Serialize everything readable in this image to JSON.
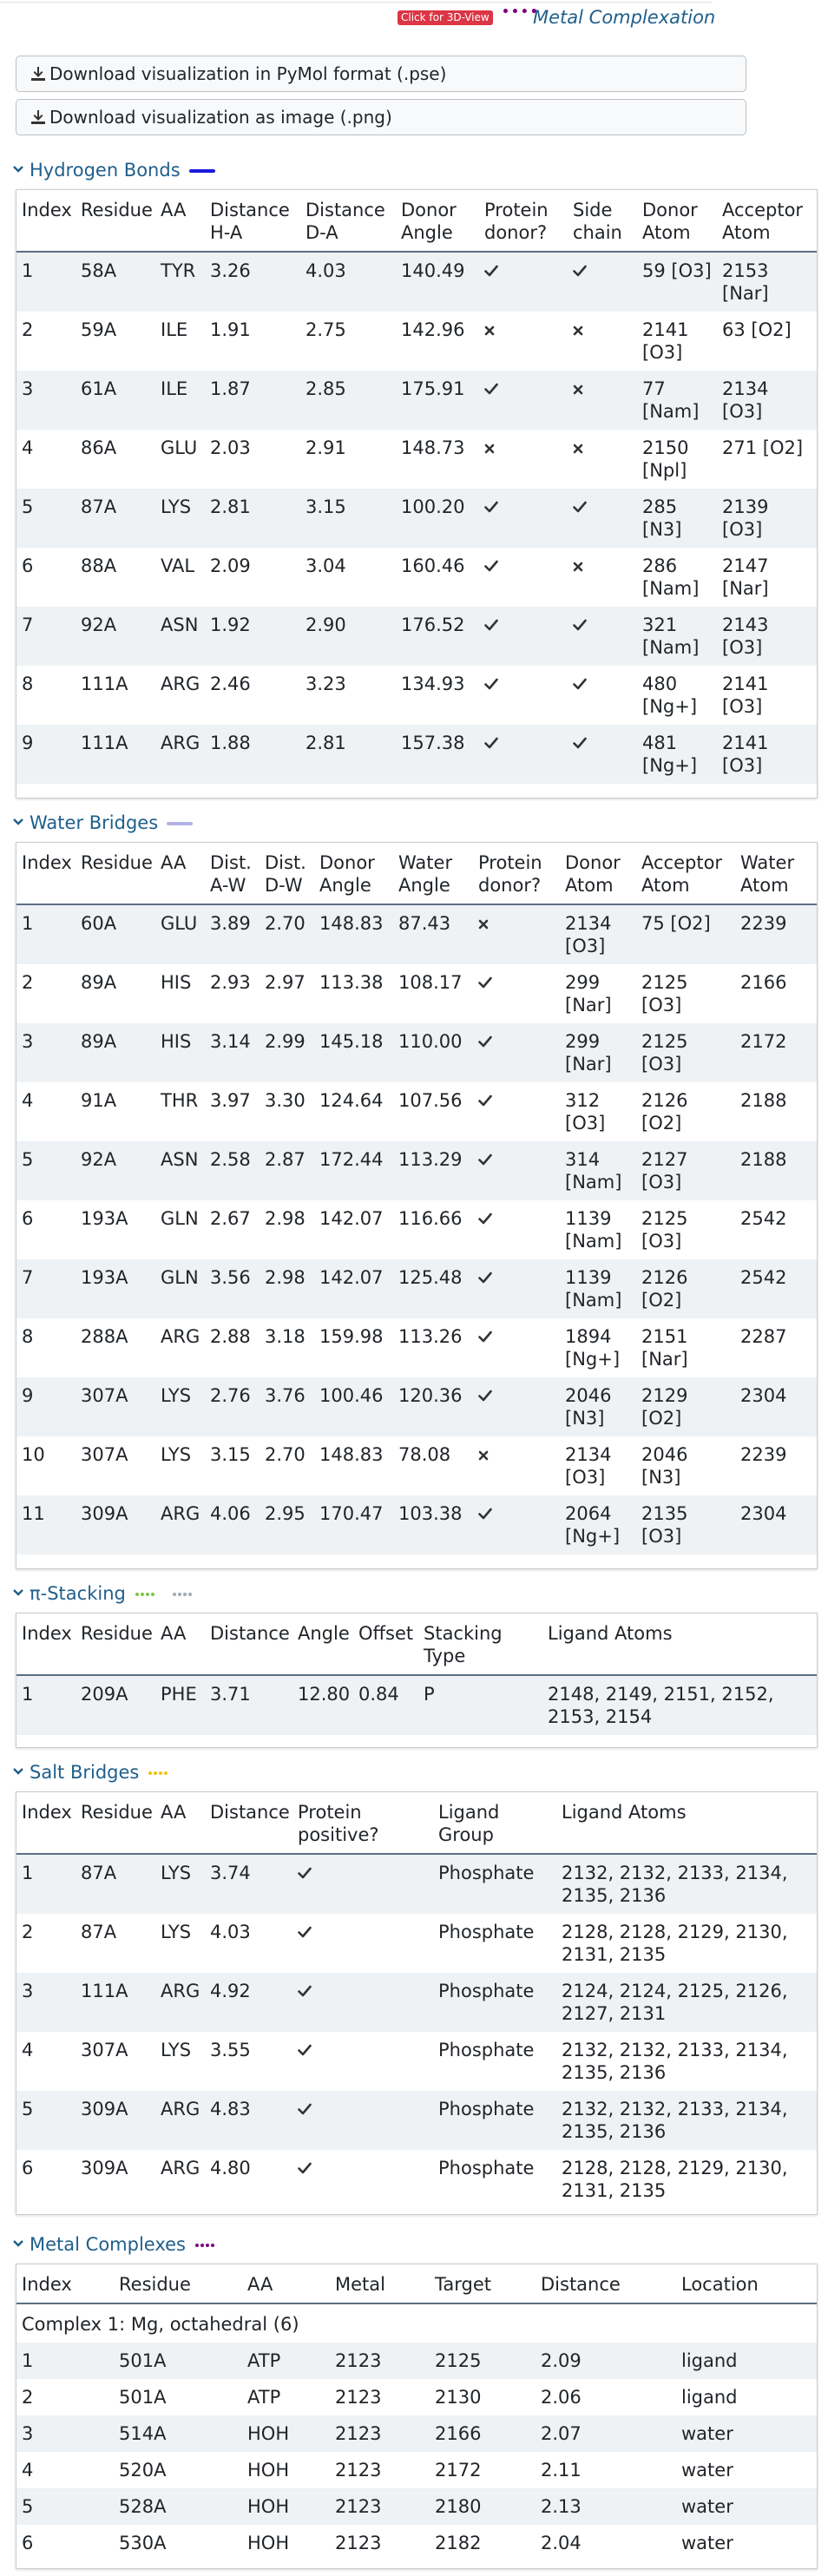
{
  "header": {
    "badge_3d": "Click for 3D-View",
    "metal_label": "Metal Complexation",
    "dots": "••••",
    "dots_color": "#800080"
  },
  "buttons": {
    "download_pse": "Download visualization in PyMol format (.pse)",
    "download_png": "Download visualization as image (.png)"
  },
  "colors": {
    "section_title": "#1f5f8b",
    "hbond_line": "#1a1adb",
    "water_line": "#b3b3e6",
    "pi_dots": "#7ec642",
    "salt_dots": "#f4c20d",
    "metal_dots": "#800080"
  },
  "hydrogen_bonds": {
    "title": "Hydrogen Bonds",
    "headers": [
      "Index",
      "Residue",
      "AA",
      "Distance H-A",
      "Distance D-A",
      "Donor Angle",
      "Protein donor?",
      "Side chain",
      "Donor Atom",
      "Acceptor Atom"
    ],
    "rows": [
      [
        "1",
        "58A",
        "TYR",
        "3.26",
        "4.03",
        "140.49",
        "check",
        "check",
        "59 [O3]",
        "2153 [Nar]"
      ],
      [
        "2",
        "59A",
        "ILE",
        "1.91",
        "2.75",
        "142.96",
        "cross",
        "cross",
        "2141 [O3]",
        "63 [O2]"
      ],
      [
        "3",
        "61A",
        "ILE",
        "1.87",
        "2.85",
        "175.91",
        "check",
        "cross",
        "77 [Nam]",
        "2134 [O3]"
      ],
      [
        "4",
        "86A",
        "GLU",
        "2.03",
        "2.91",
        "148.73",
        "cross",
        "cross",
        "2150 [Npl]",
        "271 [O2]"
      ],
      [
        "5",
        "87A",
        "LYS",
        "2.81",
        "3.15",
        "100.20",
        "check",
        "check",
        "285 [N3]",
        "2139 [O3]"
      ],
      [
        "6",
        "88A",
        "VAL",
        "2.09",
        "3.04",
        "160.46",
        "check",
        "cross",
        "286 [Nam]",
        "2147 [Nar]"
      ],
      [
        "7",
        "92A",
        "ASN",
        "1.92",
        "2.90",
        "176.52",
        "check",
        "check",
        "321 [Nam]",
        "2143 [O3]"
      ],
      [
        "8",
        "111A",
        "ARG",
        "2.46",
        "3.23",
        "134.93",
        "check",
        "check",
        "480 [Ng+]",
        "2141 [O3]"
      ],
      [
        "9",
        "111A",
        "ARG",
        "1.88",
        "2.81",
        "157.38",
        "check",
        "check",
        "481 [Ng+]",
        "2141 [O3]"
      ]
    ]
  },
  "water_bridges": {
    "title": "Water Bridges",
    "headers": [
      "Index",
      "Residue",
      "AA",
      "Dist. A-W",
      "Dist. D-W",
      "Donor Angle",
      "Water Angle",
      "Protein donor?",
      "Donor Atom",
      "Acceptor Atom",
      "Water Atom"
    ],
    "rows": [
      [
        "1",
        "60A",
        "GLU",
        "3.89",
        "2.70",
        "148.83",
        "87.43",
        "cross",
        "2134 [O3]",
        "75 [O2]",
        "2239"
      ],
      [
        "2",
        "89A",
        "HIS",
        "2.93",
        "2.97",
        "113.38",
        "108.17",
        "check",
        "299 [Nar]",
        "2125 [O3]",
        "2166"
      ],
      [
        "3",
        "89A",
        "HIS",
        "3.14",
        "2.99",
        "145.18",
        "110.00",
        "check",
        "299 [Nar]",
        "2125 [O3]",
        "2172"
      ],
      [
        "4",
        "91A",
        "THR",
        "3.97",
        "3.30",
        "124.64",
        "107.56",
        "check",
        "312 [O3]",
        "2126 [O2]",
        "2188"
      ],
      [
        "5",
        "92A",
        "ASN",
        "2.58",
        "2.87",
        "172.44",
        "113.29",
        "check",
        "314 [Nam]",
        "2127 [O3]",
        "2188"
      ],
      [
        "6",
        "193A",
        "GLN",
        "2.67",
        "2.98",
        "142.07",
        "116.66",
        "check",
        "1139 [Nam]",
        "2125 [O3]",
        "2542"
      ],
      [
        "7",
        "193A",
        "GLN",
        "3.56",
        "2.98",
        "142.07",
        "125.48",
        "check",
        "1139 [Nam]",
        "2126 [O2]",
        "2542"
      ],
      [
        "8",
        "288A",
        "ARG",
        "2.88",
        "3.18",
        "159.98",
        "113.26",
        "check",
        "1894 [Ng+]",
        "2151 [Nar]",
        "2287"
      ],
      [
        "9",
        "307A",
        "LYS",
        "2.76",
        "3.76",
        "100.46",
        "120.36",
        "check",
        "2046 [N3]",
        "2129 [O2]",
        "2304"
      ],
      [
        "10",
        "307A",
        "LYS",
        "3.15",
        "2.70",
        "148.83",
        "78.08",
        "cross",
        "2134 [O3]",
        "2046 [N3]",
        "2239"
      ],
      [
        "11",
        "309A",
        "ARG",
        "4.06",
        "2.95",
        "170.47",
        "103.38",
        "check",
        "2064 [Ng+]",
        "2135 [O3]",
        "2304"
      ]
    ]
  },
  "pi_stacking": {
    "title": "π-Stacking",
    "headers": [
      "Index",
      "Residue",
      "AA",
      "Distance",
      "Angle",
      "Offset",
      "Stacking Type",
      "Ligand Atoms"
    ],
    "rows": [
      [
        "1",
        "209A",
        "PHE",
        "3.71",
        "12.80",
        "0.84",
        "P",
        "2148, 2149, 2151, 2152, 2153, 2154"
      ]
    ]
  },
  "salt_bridges": {
    "title": "Salt Bridges",
    "headers": [
      "Index",
      "Residue",
      "AA",
      "Distance",
      "Protein positive?",
      "Ligand Group",
      "Ligand Atoms"
    ],
    "rows": [
      [
        "1",
        "87A",
        "LYS",
        "3.74",
        "check",
        "Phosphate",
        "2132, 2132, 2133, 2134, 2135, 2136"
      ],
      [
        "2",
        "87A",
        "LYS",
        "4.03",
        "check",
        "Phosphate",
        "2128, 2128, 2129, 2130, 2131, 2135"
      ],
      [
        "3",
        "111A",
        "ARG",
        "4.92",
        "check",
        "Phosphate",
        "2124, 2124, 2125, 2126, 2127, 2131"
      ],
      [
        "4",
        "307A",
        "LYS",
        "3.55",
        "check",
        "Phosphate",
        "2132, 2132, 2133, 2134, 2135, 2136"
      ],
      [
        "5",
        "309A",
        "ARG",
        "4.83",
        "check",
        "Phosphate",
        "2132, 2132, 2133, 2134, 2135, 2136"
      ],
      [
        "6",
        "309A",
        "ARG",
        "4.80",
        "check",
        "Phosphate",
        "2128, 2128, 2129, 2130, 2131, 2135"
      ]
    ]
  },
  "metal_complexes": {
    "title": "Metal Complexes",
    "headers": [
      "Index",
      "Residue",
      "AA",
      "Metal",
      "Target",
      "Distance",
      "Location"
    ],
    "subheader": "Complex 1: Mg, octahedral (6)",
    "rows": [
      [
        "1",
        "501A",
        "ATP",
        "2123",
        "2125",
        "2.09",
        "ligand"
      ],
      [
        "2",
        "501A",
        "ATP",
        "2123",
        "2130",
        "2.06",
        "ligand"
      ],
      [
        "3",
        "514A",
        "HOH",
        "2123",
        "2166",
        "2.07",
        "water"
      ],
      [
        "4",
        "520A",
        "HOH",
        "2123",
        "2172",
        "2.11",
        "water"
      ],
      [
        "5",
        "528A",
        "HOH",
        "2123",
        "2180",
        "2.13",
        "water"
      ],
      [
        "6",
        "530A",
        "HOH",
        "2123",
        "2182",
        "2.04",
        "water"
      ]
    ]
  }
}
